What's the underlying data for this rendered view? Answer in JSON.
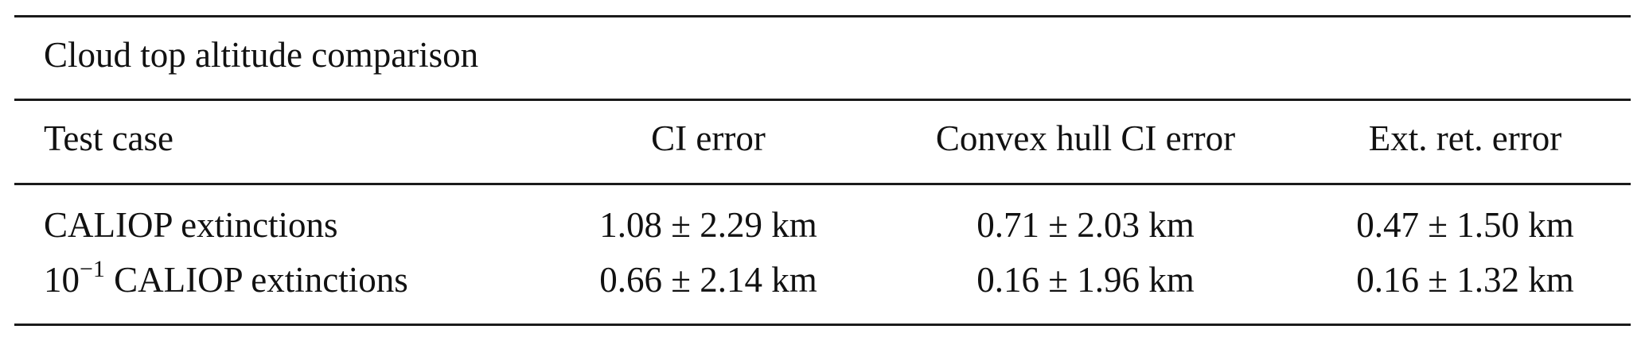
{
  "table": {
    "caption": "Cloud top altitude comparison",
    "headers": [
      "Test case",
      "CI error",
      "Convex hull CI error",
      "Ext. ret. error"
    ],
    "rows": [
      {
        "case_prefix": "",
        "case_exp": "",
        "case": "CALIOP extinctions",
        "values": [
          "1.08 ± 2.29 km",
          "0.71 ± 2.03 km",
          "0.47 ± 1.50 km"
        ]
      },
      {
        "case_prefix": "10",
        "case_exp": "−1",
        "case": "CALIOP extinctions",
        "values": [
          "0.66 ± 2.14 km",
          "0.16 ± 1.96 km",
          "0.16 ± 1.32 km"
        ]
      }
    ]
  }
}
